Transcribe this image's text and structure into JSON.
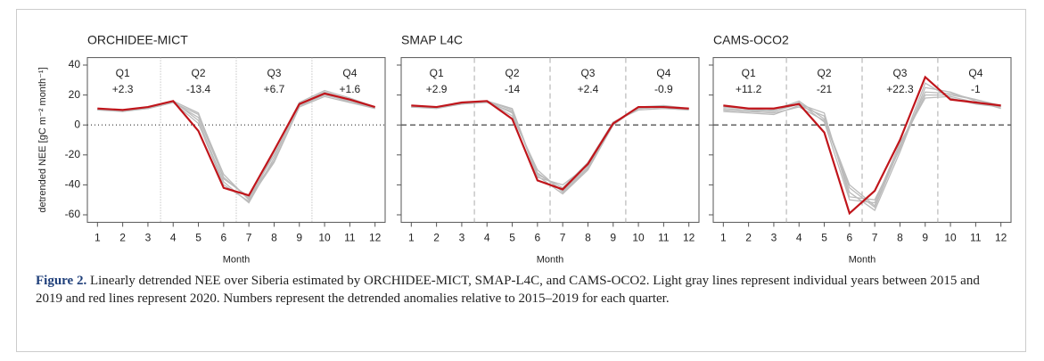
{
  "chart_data": [
    {
      "type": "line",
      "title": "ORCHIDEE-MICT",
      "ylabel": "detrended NEE [gC m⁻² month⁻¹]",
      "xlabel": "Month",
      "x": [
        1,
        2,
        3,
        4,
        5,
        6,
        7,
        8,
        9,
        10,
        11,
        12
      ],
      "xlim": [
        0.6,
        12.4
      ],
      "xticks": [
        1,
        2,
        3,
        4,
        5,
        6,
        7,
        8,
        9,
        10,
        11,
        12
      ],
      "ylim": [
        -65,
        45
      ],
      "yticks": [
        -60,
        -40,
        -20,
        0,
        20,
        40
      ],
      "ytick_labels": true,
      "refline_style": "dotted",
      "quarters": [
        {
          "name": "Q1",
          "text": "+2.3"
        },
        {
          "name": "Q2",
          "text": "-13.4"
        },
        {
          "name": "Q3",
          "text": "+6.7"
        },
        {
          "name": "Q4",
          "text": "+1.6"
        }
      ],
      "series": [
        {
          "color": "#bbbbbb",
          "values": [
            10,
            9,
            11,
            15,
            7,
            -33,
            -50,
            -25,
            12,
            19,
            15,
            12
          ]
        },
        {
          "color": "#bbbbbb",
          "values": [
            11,
            10,
            12,
            16,
            3,
            -38,
            -52,
            -22,
            14,
            22,
            17,
            11
          ]
        },
        {
          "color": "#bbbbbb",
          "values": [
            10,
            10,
            11,
            15,
            5,
            -35,
            -49,
            -20,
            13,
            20,
            16,
            12
          ]
        },
        {
          "color": "#bbbbbb",
          "values": [
            11,
            9,
            12,
            16,
            8,
            -36,
            -48,
            -24,
            12,
            21,
            15,
            11
          ]
        },
        {
          "color": "#bbbbbb",
          "values": [
            10,
            10,
            11,
            15,
            1,
            -40,
            -51,
            -18,
            15,
            23,
            18,
            12
          ]
        },
        {
          "color": "#c0151b",
          "values": [
            11,
            10,
            12,
            16,
            -4,
            -42,
            -47,
            -17,
            14,
            21,
            17,
            12
          ]
        }
      ]
    },
    {
      "type": "line",
      "title": "SMAP L4C",
      "xlabel": "Month",
      "x": [
        1,
        2,
        3,
        4,
        5,
        6,
        7,
        8,
        9,
        10,
        11,
        12
      ],
      "xlim": [
        0.6,
        12.4
      ],
      "xticks": [
        1,
        2,
        3,
        4,
        5,
        6,
        7,
        8,
        9,
        10,
        11,
        12
      ],
      "ylim": [
        -65,
        45
      ],
      "yticks": [
        -60,
        -40,
        -20,
        0,
        20,
        40
      ],
      "ytick_labels": false,
      "refline_style": "dashed",
      "quarters": [
        {
          "name": "Q1",
          "text": "+2.9"
        },
        {
          "name": "Q2",
          "text": "-14"
        },
        {
          "name": "Q3",
          "text": "+2.4"
        },
        {
          "name": "Q4",
          "text": "-0.9"
        }
      ],
      "series": [
        {
          "color": "#bbbbbb",
          "values": [
            12,
            12,
            14,
            16,
            8,
            -32,
            -44,
            -28,
            1,
            11,
            12,
            11
          ]
        },
        {
          "color": "#bbbbbb",
          "values": [
            13,
            12,
            15,
            16,
            11,
            -34,
            -46,
            -30,
            0,
            12,
            12,
            11
          ]
        },
        {
          "color": "#bbbbbb",
          "values": [
            12,
            11,
            14,
            15,
            9,
            -33,
            -42,
            -25,
            2,
            10,
            11,
            10
          ]
        },
        {
          "color": "#bbbbbb",
          "values": [
            13,
            12,
            14,
            16,
            6,
            -30,
            -45,
            -29,
            1,
            11,
            12,
            11
          ]
        },
        {
          "color": "#bbbbbb",
          "values": [
            12,
            12,
            15,
            16,
            10,
            -35,
            -40,
            -27,
            0,
            12,
            13,
            11
          ]
        },
        {
          "color": "#c0151b",
          "values": [
            13,
            12,
            15,
            16,
            4,
            -37,
            -43,
            -26,
            1,
            12,
            12,
            11
          ]
        }
      ]
    },
    {
      "type": "line",
      "title": "CAMS-OCO2",
      "xlabel": "Month",
      "x": [
        1,
        2,
        3,
        4,
        5,
        6,
        7,
        8,
        9,
        10,
        11,
        12
      ],
      "xlim": [
        0.6,
        12.4
      ],
      "xticks": [
        1,
        2,
        3,
        4,
        5,
        6,
        7,
        8,
        9,
        10,
        11,
        12
      ],
      "ylim": [
        -65,
        45
      ],
      "yticks": [
        -60,
        -40,
        -20,
        0,
        20,
        40
      ],
      "ytick_labels": false,
      "refline_style": "dashed",
      "quarters": [
        {
          "name": "Q1",
          "text": "+11.2"
        },
        {
          "name": "Q2",
          "text": "-21"
        },
        {
          "name": "Q3",
          "text": "+22.3"
        },
        {
          "name": "Q4",
          "text": "-1"
        }
      ],
      "series": [
        {
          "color": "#bbbbbb",
          "values": [
            10,
            9,
            8,
            12,
            3,
            -42,
            -55,
            -15,
            20,
            20,
            17,
            12
          ]
        },
        {
          "color": "#bbbbbb",
          "values": [
            9,
            8,
            7,
            13,
            6,
            -45,
            -57,
            -18,
            25,
            22,
            16,
            11
          ]
        },
        {
          "color": "#bbbbbb",
          "values": [
            11,
            10,
            9,
            15,
            2,
            -50,
            -52,
            -12,
            18,
            19,
            15,
            12
          ]
        },
        {
          "color": "#bbbbbb",
          "values": [
            10,
            9,
            10,
            16,
            4,
            -40,
            -54,
            -14,
            22,
            21,
            17,
            13
          ]
        },
        {
          "color": "#bbbbbb",
          "values": [
            12,
            11,
            9,
            14,
            8,
            -48,
            -50,
            -16,
            28,
            18,
            14,
            12
          ]
        },
        {
          "color": "#c0151b",
          "values": [
            13,
            11,
            11,
            14,
            -5,
            -59,
            -44,
            -10,
            32,
            17,
            15,
            13
          ]
        }
      ]
    }
  ],
  "caption": {
    "label": "Figure 2.",
    "text": "Linearly detrended NEE over Siberia estimated by ORCHIDEE-MICT, SMAP-L4C, and CAMS-OCO2. Light gray lines represent individual years between 2015 and 2019 and red lines represent 2020. Numbers represent the detrended anomalies relative to 2015–2019 for each quarter."
  }
}
